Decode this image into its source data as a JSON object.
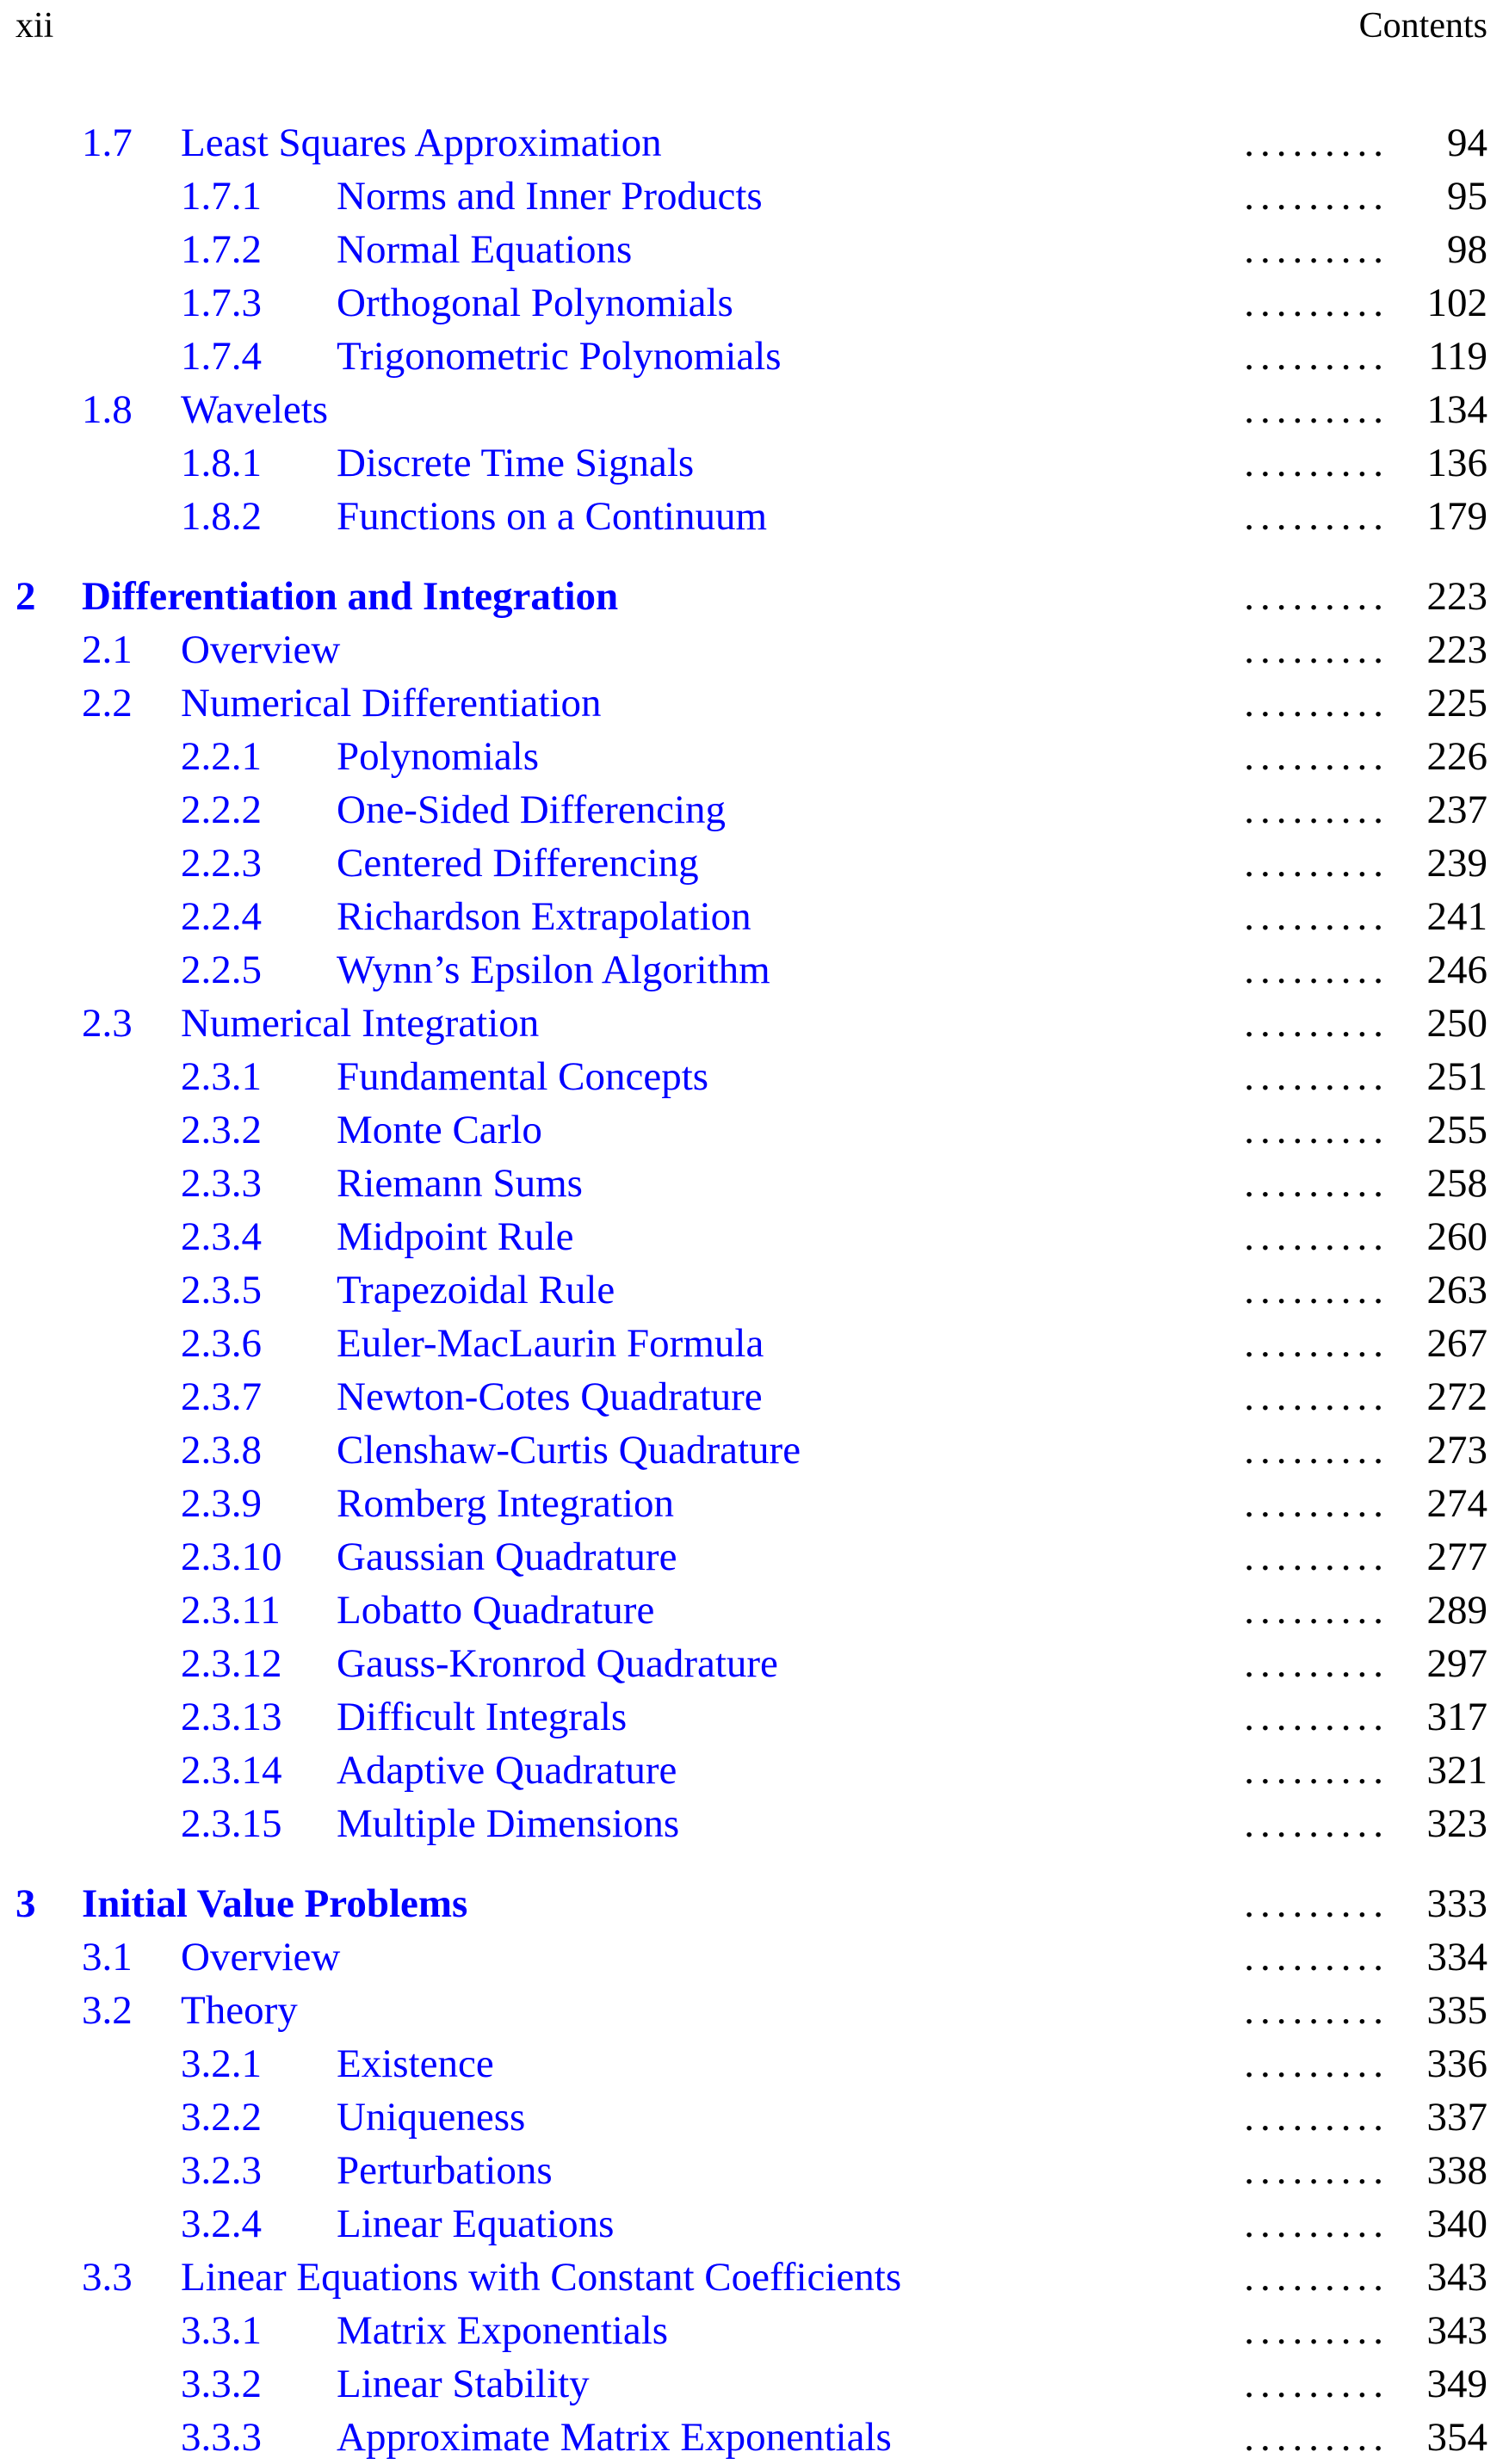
{
  "header": {
    "page_number": "xii",
    "running_title": "Contents"
  },
  "colors": {
    "link": "#0000ff",
    "text": "#000000"
  },
  "entries": [
    {
      "level": 1,
      "number": "1.7",
      "title": "Least Squares Approximation",
      "page": "94"
    },
    {
      "level": 2,
      "number": "1.7.1",
      "title": "Norms and Inner Products",
      "page": "95"
    },
    {
      "level": 2,
      "number": "1.7.2",
      "title": "Normal Equations",
      "page": "98"
    },
    {
      "level": 2,
      "number": "1.7.3",
      "title": "Orthogonal Polynomials",
      "page": "102"
    },
    {
      "level": 2,
      "number": "1.7.4",
      "title": "Trigonometric Polynomials",
      "page": "119"
    },
    {
      "level": 1,
      "number": "1.8",
      "title": "Wavelets",
      "page": "134"
    },
    {
      "level": 2,
      "number": "1.8.1",
      "title": "Discrete Time Signals",
      "page": "136"
    },
    {
      "level": 2,
      "number": "1.8.2",
      "title": "Functions on a Continuum",
      "page": "179"
    },
    {
      "level": 0,
      "number": "2",
      "title": "Differentiation and Integration",
      "page": "223"
    },
    {
      "level": 1,
      "number": "2.1",
      "title": "Overview",
      "page": "223"
    },
    {
      "level": 1,
      "number": "2.2",
      "title": "Numerical Differentiation",
      "page": "225"
    },
    {
      "level": 2,
      "number": "2.2.1",
      "title": "Polynomials",
      "page": "226"
    },
    {
      "level": 2,
      "number": "2.2.2",
      "title": "One-Sided Differencing",
      "page": "237"
    },
    {
      "level": 2,
      "number": "2.2.3",
      "title": "Centered Differencing",
      "page": "239"
    },
    {
      "level": 2,
      "number": "2.2.4",
      "title": "Richardson Extrapolation",
      "page": "241"
    },
    {
      "level": 2,
      "number": "2.2.5",
      "title": "Wynn’s Epsilon Algorithm",
      "page": "246"
    },
    {
      "level": 1,
      "number": "2.3",
      "title": "Numerical Integration",
      "page": "250"
    },
    {
      "level": 2,
      "number": "2.3.1",
      "title": "Fundamental Concepts",
      "page": "251"
    },
    {
      "level": 2,
      "number": "2.3.2",
      "title": "Monte Carlo",
      "page": "255"
    },
    {
      "level": 2,
      "number": "2.3.3",
      "title": "Riemann Sums",
      "page": "258"
    },
    {
      "level": 2,
      "number": "2.3.4",
      "title": "Midpoint Rule",
      "page": "260"
    },
    {
      "level": 2,
      "number": "2.3.5",
      "title": "Trapezoidal Rule",
      "page": "263"
    },
    {
      "level": 2,
      "number": "2.3.6",
      "title": "Euler-MacLaurin Formula",
      "page": "267"
    },
    {
      "level": 2,
      "number": "2.3.7",
      "title": "Newton-Cotes Quadrature",
      "page": "272"
    },
    {
      "level": 2,
      "number": "2.3.8",
      "title": "Clenshaw-Curtis Quadrature",
      "page": "273"
    },
    {
      "level": 2,
      "number": "2.3.9",
      "title": "Romberg Integration",
      "page": "274"
    },
    {
      "level": 2,
      "number": "2.3.10",
      "title": "Gaussian Quadrature",
      "page": "277"
    },
    {
      "level": 2,
      "number": "2.3.11",
      "title": "Lobatto Quadrature",
      "page": "289"
    },
    {
      "level": 2,
      "number": "2.3.12",
      "title": "Gauss-Kronrod Quadrature",
      "page": "297"
    },
    {
      "level": 2,
      "number": "2.3.13",
      "title": "Difficult Integrals",
      "page": "317"
    },
    {
      "level": 2,
      "number": "2.3.14",
      "title": "Adaptive Quadrature",
      "page": "321"
    },
    {
      "level": 2,
      "number": "2.3.15",
      "title": "Multiple Dimensions",
      "page": "323"
    },
    {
      "level": 0,
      "number": "3",
      "title": "Initial Value Problems",
      "page": "333"
    },
    {
      "level": 1,
      "number": "3.1",
      "title": "Overview",
      "page": "334"
    },
    {
      "level": 1,
      "number": "3.2",
      "title": "Theory",
      "page": "335"
    },
    {
      "level": 2,
      "number": "3.2.1",
      "title": "Existence",
      "page": "336"
    },
    {
      "level": 2,
      "number": "3.2.2",
      "title": "Uniqueness",
      "page": "337"
    },
    {
      "level": 2,
      "number": "3.2.3",
      "title": "Perturbations",
      "page": "338"
    },
    {
      "level": 2,
      "number": "3.2.4",
      "title": "Linear Equations",
      "page": "340"
    },
    {
      "level": 1,
      "number": "3.3",
      "title": "Linear Equations with Constant Coefficients",
      "page": "343"
    },
    {
      "level": 2,
      "number": "3.3.1",
      "title": "Matrix Exponentials",
      "page": "343"
    },
    {
      "level": 2,
      "number": "3.3.2",
      "title": "Linear Stability",
      "page": "349"
    },
    {
      "level": 2,
      "number": "3.3.3",
      "title": "Approximate Matrix Exponentials",
      "page": "354"
    }
  ]
}
